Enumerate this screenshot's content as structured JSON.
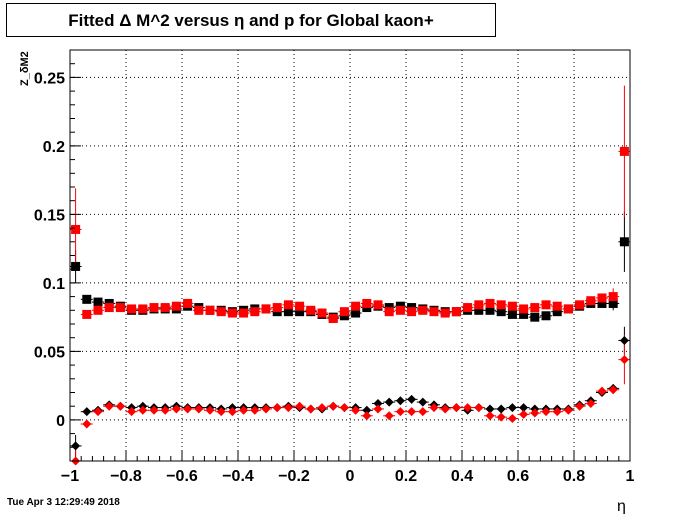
{
  "title": "Fitted Δ M^2 versus η and p for Global kaon+",
  "footer": "Tue Apr  3 12:29:49 2018",
  "chart_data": {
    "type": "scatter",
    "title": "Fitted Δ M^2 versus η and p for Global kaon+",
    "xlabel": "η",
    "ylabel": "Z_δM2",
    "xlim": [
      -1,
      1
    ],
    "ylim": [
      -0.03,
      0.27
    ],
    "grid": true,
    "xticks": [
      -1,
      -0.8,
      -0.6,
      -0.4,
      -0.2,
      0,
      0.2,
      0.4,
      0.6,
      0.8,
      1
    ],
    "xtick_labels": [
      "−1",
      "−0.8",
      "−0.6",
      "−0.4",
      "−0.2",
      "0",
      "0.2",
      "0.4",
      "0.6",
      "0.8",
      "1"
    ],
    "yticks": [
      0,
      0.05,
      0.1,
      0.15,
      0.2,
      0.25
    ],
    "ytick_labels": [
      "0",
      "0.05",
      "0.1",
      "0.15",
      "0.2",
      "0.25"
    ],
    "x": [
      -0.98,
      -0.94,
      -0.9,
      -0.86,
      -0.82,
      -0.78,
      -0.74,
      -0.7,
      -0.66,
      -0.62,
      -0.58,
      -0.54,
      -0.5,
      -0.46,
      -0.42,
      -0.38,
      -0.34,
      -0.3,
      -0.26,
      -0.22,
      -0.18,
      -0.14,
      -0.1,
      -0.06,
      -0.02,
      0.02,
      0.06,
      0.1,
      0.14,
      0.18,
      0.22,
      0.26,
      0.3,
      0.34,
      0.38,
      0.42,
      0.46,
      0.5,
      0.54,
      0.58,
      0.62,
      0.66,
      0.7,
      0.74,
      0.78,
      0.82,
      0.86,
      0.9,
      0.94,
      0.98
    ],
    "series": [
      {
        "marker": "square",
        "color": "#000000",
        "values": [
          0.112,
          0.088,
          0.086,
          0.085,
          0.083,
          0.08,
          0.08,
          0.081,
          0.081,
          0.081,
          0.083,
          0.082,
          0.08,
          0.08,
          0.079,
          0.08,
          0.081,
          0.081,
          0.079,
          0.079,
          0.079,
          0.079,
          0.077,
          0.075,
          0.076,
          0.078,
          0.082,
          0.083,
          0.082,
          0.083,
          0.082,
          0.081,
          0.08,
          0.079,
          0.079,
          0.08,
          0.08,
          0.08,
          0.079,
          0.077,
          0.077,
          0.075,
          0.076,
          0.079,
          0.081,
          0.083,
          0.085,
          0.085,
          0.085,
          0.13
        ],
        "errors": [
          0.012,
          0.002,
          0.002,
          0.002,
          0.002,
          0.002,
          0.002,
          0.002,
          0.002,
          0.002,
          0.002,
          0.002,
          0.002,
          0.002,
          0.002,
          0.002,
          0.002,
          0.002,
          0.002,
          0.002,
          0.002,
          0.002,
          0.002,
          0.002,
          0.002,
          0.002,
          0.002,
          0.002,
          0.002,
          0.002,
          0.002,
          0.002,
          0.002,
          0.002,
          0.002,
          0.002,
          0.002,
          0.002,
          0.002,
          0.002,
          0.002,
          0.002,
          0.002,
          0.002,
          0.002,
          0.002,
          0.002,
          0.003,
          0.005,
          0.022
        ]
      },
      {
        "marker": "square",
        "color": "#ff0000",
        "values": [
          0.139,
          0.077,
          0.08,
          0.082,
          0.082,
          0.081,
          0.081,
          0.082,
          0.082,
          0.083,
          0.085,
          0.08,
          0.08,
          0.079,
          0.078,
          0.078,
          0.079,
          0.081,
          0.082,
          0.084,
          0.083,
          0.08,
          0.078,
          0.074,
          0.079,
          0.083,
          0.085,
          0.084,
          0.079,
          0.08,
          0.079,
          0.08,
          0.079,
          0.078,
          0.079,
          0.082,
          0.084,
          0.085,
          0.084,
          0.083,
          0.081,
          0.082,
          0.084,
          0.083,
          0.081,
          0.084,
          0.087,
          0.089,
          0.09,
          0.196
        ],
        "errors": [
          0.03,
          0.002,
          0.002,
          0.002,
          0.002,
          0.002,
          0.002,
          0.002,
          0.002,
          0.002,
          0.002,
          0.002,
          0.002,
          0.002,
          0.002,
          0.002,
          0.002,
          0.002,
          0.002,
          0.002,
          0.002,
          0.002,
          0.002,
          0.002,
          0.002,
          0.002,
          0.002,
          0.002,
          0.002,
          0.002,
          0.002,
          0.002,
          0.002,
          0.002,
          0.002,
          0.002,
          0.002,
          0.002,
          0.002,
          0.002,
          0.002,
          0.002,
          0.002,
          0.002,
          0.002,
          0.002,
          0.002,
          0.003,
          0.006,
          0.048
        ]
      },
      {
        "marker": "diamond",
        "color": "#000000",
        "values": [
          -0.019,
          0.006,
          0.007,
          0.011,
          0.01,
          0.009,
          0.01,
          0.009,
          0.009,
          0.01,
          0.009,
          0.009,
          0.009,
          0.008,
          0.009,
          0.009,
          0.009,
          0.009,
          0.009,
          0.01,
          0.009,
          0.008,
          0.008,
          0.01,
          0.009,
          0.009,
          0.007,
          0.012,
          0.013,
          0.014,
          0.015,
          0.013,
          0.011,
          0.009,
          0.009,
          0.007,
          0.009,
          0.008,
          0.008,
          0.009,
          0.009,
          0.008,
          0.008,
          0.008,
          0.008,
          0.011,
          0.014,
          0.02,
          0.023,
          0.058
        ],
        "errors": [
          0.008,
          0.001,
          0.001,
          0.001,
          0.001,
          0.001,
          0.001,
          0.001,
          0.001,
          0.001,
          0.001,
          0.001,
          0.001,
          0.001,
          0.001,
          0.001,
          0.001,
          0.001,
          0.001,
          0.001,
          0.001,
          0.001,
          0.001,
          0.001,
          0.001,
          0.001,
          0.001,
          0.001,
          0.001,
          0.001,
          0.001,
          0.001,
          0.001,
          0.001,
          0.001,
          0.001,
          0.001,
          0.001,
          0.001,
          0.001,
          0.001,
          0.001,
          0.001,
          0.001,
          0.001,
          0.001,
          0.002,
          0.002,
          0.003,
          0.01
        ]
      },
      {
        "marker": "diamond",
        "color": "#ff0000",
        "values": [
          -0.03,
          -0.003,
          0.006,
          0.01,
          0.01,
          0.006,
          0.007,
          0.007,
          0.007,
          0.008,
          0.008,
          0.008,
          0.007,
          0.006,
          0.006,
          0.007,
          0.007,
          0.008,
          0.009,
          0.009,
          0.01,
          0.008,
          0.009,
          0.01,
          0.009,
          0.007,
          0.003,
          0.008,
          0.003,
          0.006,
          0.006,
          0.006,
          0.009,
          0.008,
          0.009,
          0.009,
          0.009,
          0.003,
          0.002,
          0.001,
          0.004,
          0.005,
          0.006,
          0.006,
          0.007,
          0.01,
          0.012,
          0.021,
          0.022,
          0.044
        ],
        "errors": [
          0.01,
          0.001,
          0.001,
          0.001,
          0.001,
          0.001,
          0.001,
          0.001,
          0.001,
          0.001,
          0.001,
          0.001,
          0.001,
          0.001,
          0.001,
          0.001,
          0.001,
          0.001,
          0.001,
          0.001,
          0.001,
          0.001,
          0.001,
          0.001,
          0.001,
          0.001,
          0.001,
          0.001,
          0.001,
          0.001,
          0.001,
          0.001,
          0.001,
          0.001,
          0.001,
          0.001,
          0.001,
          0.001,
          0.001,
          0.001,
          0.001,
          0.001,
          0.001,
          0.001,
          0.001,
          0.001,
          0.002,
          0.002,
          0.003,
          0.018
        ]
      }
    ]
  }
}
